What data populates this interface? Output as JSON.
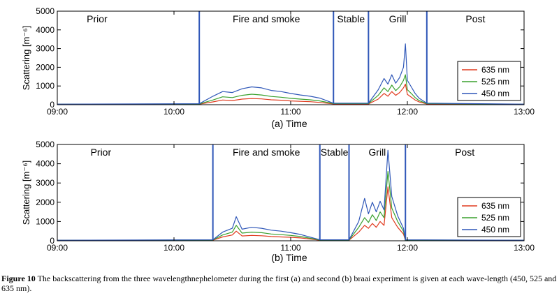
{
  "caption": {
    "label": "Figure 10",
    "text": " The backscattering from the three wavelengthnephelometer during the first (a) and second (b) braai experiment is given at each wave-length (450, 525 and 635 nm)."
  },
  "chart_data": [
    {
      "type": "line",
      "xlabel": "(a)   Time",
      "ylabel": "Scattering [m⁻⁶]",
      "ylim": [
        0,
        5000
      ],
      "yticks": [
        0,
        1000,
        2000,
        3000,
        4000,
        5000
      ],
      "xlim": [
        "09:00",
        "13:00"
      ],
      "xticks": [
        "09:00",
        "10:00",
        "11:00",
        "12:00",
        "13:00"
      ],
      "grid": false,
      "legend": "right",
      "phases": [
        {
          "label": "Prior",
          "start": "09:00",
          "end": "10:13"
        },
        {
          "label": "Fire and smoke",
          "start": "10:13",
          "end": "11:22"
        },
        {
          "label": "Stable",
          "start": "11:22",
          "end": "11:40"
        },
        {
          "label": "Grill",
          "start": "11:40",
          "end": "12:10"
        },
        {
          "label": "Post",
          "start": "12:10",
          "end": "13:00"
        }
      ],
      "series": [
        {
          "name": "635 nm",
          "color": "#e03a1e",
          "x": [
            "09:00",
            "10:13",
            "10:20",
            "10:25",
            "10:30",
            "10:35",
            "10:40",
            "10:45",
            "10:50",
            "10:55",
            "11:00",
            "11:05",
            "11:10",
            "11:15",
            "11:22",
            "11:40",
            "11:45",
            "11:48",
            "11:50",
            "11:52",
            "11:54",
            "11:56",
            "11:58",
            "11:59",
            "12:00",
            "12:02",
            "12:04",
            "12:06",
            "12:10",
            "13:00"
          ],
          "y": [
            20,
            30,
            150,
            250,
            220,
            300,
            330,
            310,
            260,
            240,
            200,
            180,
            160,
            120,
            40,
            40,
            300,
            600,
            450,
            700,
            500,
            650,
            900,
            1100,
            550,
            400,
            250,
            150,
            40,
            20
          ]
        },
        {
          "name": "525 nm",
          "color": "#3aa12e",
          "x": [
            "09:00",
            "10:13",
            "10:20",
            "10:25",
            "10:30",
            "10:35",
            "10:40",
            "10:45",
            "10:50",
            "10:55",
            "11:00",
            "11:05",
            "11:10",
            "11:15",
            "11:22",
            "11:40",
            "11:45",
            "11:48",
            "11:50",
            "11:52",
            "11:54",
            "11:56",
            "11:58",
            "11:59",
            "12:00",
            "12:02",
            "12:04",
            "12:06",
            "12:10",
            "13:00"
          ],
          "y": [
            25,
            40,
            250,
            420,
            380,
            500,
            560,
            520,
            440,
            400,
            340,
            300,
            260,
            200,
            60,
            60,
            500,
            900,
            700,
            1050,
            750,
            950,
            1300,
            1600,
            800,
            600,
            380,
            220,
            60,
            25
          ]
        },
        {
          "name": "450 nm",
          "color": "#2f57b8",
          "x": [
            "09:00",
            "10:13",
            "10:20",
            "10:25",
            "10:30",
            "10:35",
            "10:40",
            "10:45",
            "10:50",
            "10:55",
            "11:00",
            "11:05",
            "11:10",
            "11:15",
            "11:22",
            "11:40",
            "11:45",
            "11:48",
            "11:50",
            "11:52",
            "11:54",
            "11:56",
            "11:58",
            "11:59",
            "12:00",
            "12:02",
            "12:04",
            "12:06",
            "12:10",
            "13:00"
          ],
          "y": [
            30,
            50,
            450,
            700,
            650,
            850,
            950,
            900,
            760,
            700,
            600,
            520,
            450,
            350,
            80,
            80,
            800,
            1400,
            1100,
            1600,
            1150,
            1450,
            2000,
            3250,
            1300,
            950,
            600,
            350,
            80,
            30
          ]
        }
      ]
    },
    {
      "type": "line",
      "xlabel": "(b)   Time",
      "ylabel": "Scattering [m⁻⁶]",
      "ylim": [
        0,
        5000
      ],
      "yticks": [
        0,
        1000,
        2000,
        3000,
        4000,
        5000
      ],
      "xlim": [
        "09:00",
        "13:00"
      ],
      "xticks": [
        "09:00",
        "10:00",
        "11:00",
        "12:00",
        "13:00"
      ],
      "grid": false,
      "legend": "right",
      "phases": [
        {
          "label": "Prior",
          "start": "09:00",
          "end": "10:20"
        },
        {
          "label": "Fire and smoke",
          "start": "10:20",
          "end": "11:15"
        },
        {
          "label": "Stable",
          "start": "11:15",
          "end": "11:30"
        },
        {
          "label": "Grill",
          "start": "11:30",
          "end": "11:59"
        },
        {
          "label": "Post",
          "start": "11:59",
          "end": "13:00"
        }
      ],
      "series": [
        {
          "name": "635 nm",
          "color": "#e03a1e",
          "x": [
            "09:00",
            "10:20",
            "10:25",
            "10:30",
            "10:32",
            "10:35",
            "10:40",
            "10:45",
            "10:50",
            "10:55",
            "11:00",
            "11:05",
            "11:15",
            "11:30",
            "11:35",
            "11:38",
            "11:40",
            "11:42",
            "11:44",
            "11:46",
            "11:48",
            "11:50",
            "11:52",
            "11:55",
            "11:58",
            "11:59",
            "13:00"
          ],
          "y": [
            20,
            30,
            200,
            300,
            500,
            250,
            280,
            260,
            220,
            200,
            180,
            150,
            30,
            30,
            450,
            800,
            650,
            900,
            700,
            1000,
            800,
            2800,
            1200,
            700,
            350,
            30,
            20
          ]
        },
        {
          "name": "525 nm",
          "color": "#3aa12e",
          "x": [
            "09:00",
            "10:20",
            "10:25",
            "10:30",
            "10:32",
            "10:35",
            "10:40",
            "10:45",
            "10:50",
            "10:55",
            "11:00",
            "11:05",
            "11:15",
            "11:30",
            "11:35",
            "11:38",
            "11:40",
            "11:42",
            "11:44",
            "11:46",
            "11:48",
            "11:50",
            "11:52",
            "11:55",
            "11:58",
            "11:59",
            "13:00"
          ],
          "y": [
            25,
            40,
            300,
            450,
            800,
            400,
            450,
            420,
            350,
            320,
            280,
            220,
            40,
            40,
            700,
            1200,
            950,
            1350,
            1050,
            1500,
            1200,
            3600,
            1700,
            1000,
            500,
            40,
            25
          ]
        },
        {
          "name": "450 nm",
          "color": "#2f57b8",
          "x": [
            "09:00",
            "10:20",
            "10:25",
            "10:30",
            "10:32",
            "10:35",
            "10:40",
            "10:45",
            "10:50",
            "10:55",
            "11:00",
            "11:05",
            "11:15",
            "11:30",
            "11:35",
            "11:38",
            "11:40",
            "11:42",
            "11:44",
            "11:46",
            "11:48",
            "11:50",
            "11:52",
            "11:55",
            "11:58",
            "11:59",
            "13:00"
          ],
          "y": [
            30,
            50,
            450,
            650,
            1250,
            600,
            700,
            650,
            550,
            500,
            420,
            330,
            50,
            50,
            1000,
            2200,
            1400,
            2000,
            1500,
            2050,
            1600,
            4700,
            2300,
            1300,
            650,
            50,
            30
          ]
        }
      ]
    }
  ]
}
